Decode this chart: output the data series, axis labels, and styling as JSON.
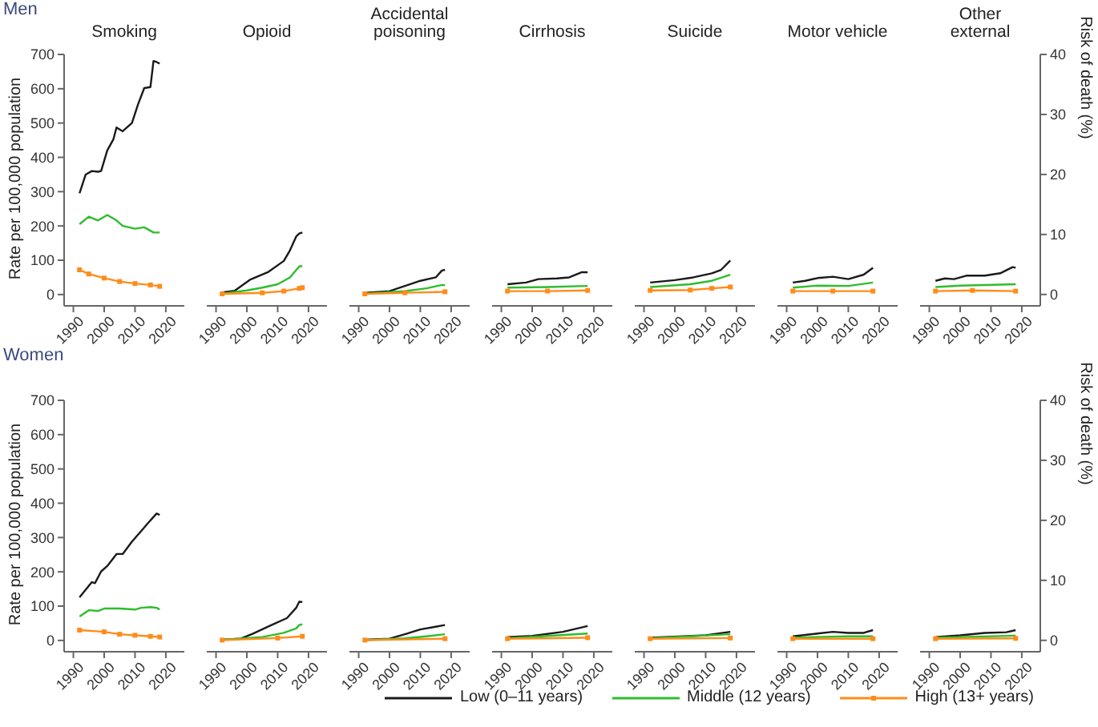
{
  "chart_data": [
    {
      "type": "line",
      "subtitle": "Men",
      "title": "Smoking",
      "ylabel": "Rate per 100,000 population",
      "legend": "bottom",
      "xlim": [
        1987,
        2026
      ],
      "xticks": [
        1990,
        2000,
        2010,
        2020
      ],
      "ylim": [
        -33,
        700
      ],
      "yticks": [
        0,
        100,
        200,
        300,
        400,
        500,
        600,
        700
      ],
      "series": [
        {
          "name": "Low (0–11 years)",
          "color": "#1a1a1a",
          "x": [
            1992,
            1994,
            1996,
            1998,
            1999,
            2001,
            2003,
            2004,
            2006,
            2009,
            2011,
            2013,
            2015,
            2016,
            2017,
            2018
          ],
          "values": [
            295,
            350,
            360,
            358,
            360,
            420,
            453,
            487,
            476,
            500,
            555,
            602,
            605,
            681,
            678,
            673
          ]
        },
        {
          "name": "Middle (12 years)",
          "color": "#2dbd2d",
          "x": [
            1992,
            1995,
            1998,
            2001,
            2004,
            2006,
            2010,
            2013,
            2016,
            2018
          ],
          "values": [
            205,
            227,
            216,
            232,
            216,
            200,
            192,
            196,
            181,
            181
          ]
        },
        {
          "name": "High (13+ years)",
          "color": "#ff8c1a",
          "marker": "square",
          "x": [
            1992,
            1995,
            2000,
            2005,
            2010,
            2015,
            2018
          ],
          "values": [
            72,
            60,
            48,
            38,
            32,
            28,
            24
          ]
        }
      ]
    },
    {
      "type": "line",
      "title": "Opioid",
      "tick_labels": "x",
      "xlim": [
        1987,
        2026
      ],
      "xticks": [
        1990,
        2000,
        2010,
        2020
      ],
      "ylim": [
        -33,
        700
      ],
      "yticks": [
        0,
        100,
        200,
        300,
        400,
        500,
        600,
        700
      ],
      "series": [
        {
          "color": "#1a1a1a",
          "x": [
            1992,
            1996,
            2001,
            2007,
            2012,
            2014,
            2016,
            2017,
            2018
          ],
          "values": [
            6,
            11,
            43,
            66,
            98,
            129,
            169,
            178,
            181
          ]
        },
        {
          "color": "#2dbd2d",
          "x": [
            1992,
            2000,
            2005,
            2010,
            2014,
            2017,
            2018
          ],
          "values": [
            3,
            12,
            20,
            30,
            50,
            82,
            83
          ]
        },
        {
          "color": "#ff8c1a",
          "marker": "square",
          "x": [
            1992,
            2005,
            2012,
            2017,
            2018
          ],
          "values": [
            2,
            5,
            10,
            18,
            20
          ]
        }
      ]
    },
    {
      "type": "line",
      "title": "Accidental poisoning",
      "tick_labels": "x",
      "xlim": [
        1987,
        2026
      ],
      "xticks": [
        1990,
        2000,
        2010,
        2020
      ],
      "ylim": [
        -33,
        700
      ],
      "yticks": [
        0,
        100,
        200,
        300,
        400,
        500,
        600,
        700
      ],
      "series": [
        {
          "color": "#1a1a1a",
          "x": [
            1992,
            2000,
            2005,
            2010,
            2015,
            2017,
            2018
          ],
          "values": [
            5,
            10,
            25,
            40,
            50,
            70,
            72
          ]
        },
        {
          "color": "#2dbd2d",
          "x": [
            1992,
            2005,
            2012,
            2017,
            2018
          ],
          "values": [
            3,
            10,
            18,
            28,
            27
          ]
        },
        {
          "color": "#ff8c1a",
          "marker": "square",
          "x": [
            1992,
            2005,
            2018
          ],
          "values": [
            2,
            5,
            8
          ]
        }
      ]
    },
    {
      "type": "line",
      "title": "Cirrhosis",
      "tick_labels": "x",
      "xlim": [
        1987,
        2026
      ],
      "xticks": [
        1990,
        2000,
        2010,
        2020
      ],
      "ylim": [
        -33,
        700
      ],
      "yticks": [
        0,
        100,
        200,
        300,
        400,
        500,
        600,
        700
      ],
      "series": [
        {
          "color": "#1a1a1a",
          "x": [
            1992,
            1998,
            2002,
            2008,
            2012,
            2016,
            2018
          ],
          "values": [
            30,
            35,
            45,
            47,
            50,
            65,
            65
          ]
        },
        {
          "color": "#2dbd2d",
          "x": [
            1992,
            2005,
            2018
          ],
          "values": [
            20,
            22,
            25
          ]
        },
        {
          "color": "#ff8c1a",
          "marker": "square",
          "x": [
            1992,
            2005,
            2018
          ],
          "values": [
            10,
            10,
            12
          ]
        }
      ]
    },
    {
      "type": "line",
      "title": "Suicide",
      "tick_labels": "x",
      "xlim": [
        1987,
        2026
      ],
      "xticks": [
        1990,
        2000,
        2010,
        2020
      ],
      "ylim": [
        -33,
        700
      ],
      "yticks": [
        0,
        100,
        200,
        300,
        400,
        500,
        600,
        700
      ],
      "series": [
        {
          "color": "#1a1a1a",
          "x": [
            1992,
            2000,
            2006,
            2012,
            2015,
            2018
          ],
          "values": [
            35,
            42,
            50,
            62,
            72,
            99
          ]
        },
        {
          "color": "#2dbd2d",
          "x": [
            1992,
            2005,
            2012,
            2018
          ],
          "values": [
            22,
            30,
            40,
            58
          ]
        },
        {
          "color": "#ff8c1a",
          "marker": "square",
          "x": [
            1992,
            2005,
            2012,
            2018
          ],
          "values": [
            12,
            13,
            18,
            22
          ]
        }
      ]
    },
    {
      "type": "line",
      "title": "Motor vehicle",
      "tick_labels": "x",
      "xlim": [
        1987,
        2026
      ],
      "xticks": [
        1990,
        2000,
        2010,
        2020
      ],
      "ylim": [
        -33,
        700
      ],
      "yticks": [
        0,
        100,
        200,
        300,
        400,
        500,
        600,
        700
      ],
      "series": [
        {
          "color": "#1a1a1a",
          "x": [
            1992,
            1996,
            2000,
            2005,
            2010,
            2015,
            2018
          ],
          "values": [
            35,
            40,
            48,
            52,
            45,
            58,
            78
          ]
        },
        {
          "color": "#2dbd2d",
          "x": [
            1992,
            2000,
            2010,
            2018
          ],
          "values": [
            20,
            26,
            25,
            35
          ]
        },
        {
          "color": "#ff8c1a",
          "marker": "square",
          "x": [
            1992,
            2005,
            2018
          ],
          "values": [
            10,
            10,
            10
          ]
        }
      ]
    },
    {
      "type": "line",
      "title": "Other external",
      "y2label": "Risk of death (%)",
      "xlim": [
        1987,
        2026
      ],
      "xticks": [
        1990,
        2000,
        2010,
        2020
      ],
      "ylim": [
        -33,
        700
      ],
      "y2lim": [
        -1.9,
        40
      ],
      "y2ticks": [
        0,
        10,
        20,
        30,
        40
      ],
      "series": [
        {
          "color": "#1a1a1a",
          "x": [
            1992,
            1995,
            1998,
            2002,
            2008,
            2013,
            2017,
            2018
          ],
          "values": [
            40,
            47,
            45,
            55,
            55,
            62,
            80,
            78
          ]
        },
        {
          "color": "#2dbd2d",
          "x": [
            1992,
            2000,
            2018
          ],
          "values": [
            22,
            26,
            30
          ]
        },
        {
          "color": "#ff8c1a",
          "marker": "square",
          "x": [
            1992,
            2004,
            2018
          ],
          "values": [
            10,
            12,
            10
          ]
        }
      ]
    },
    {
      "type": "line",
      "subtitle": "Women",
      "ylabel": "Rate per 100,000 population",
      "xlim": [
        1987,
        2026
      ],
      "xticks": [
        1990,
        2000,
        2010,
        2020
      ],
      "ylim": [
        -33,
        700
      ],
      "yticks": [
        0,
        100,
        200,
        300,
        400,
        500,
        600,
        700
      ],
      "series": [
        {
          "color": "#1a1a1a",
          "x": [
            1992,
            1996,
            1997,
            1999,
            2001,
            2004,
            2006,
            2009,
            2012,
            2014,
            2017,
            2018
          ],
          "values": [
            126,
            170,
            167,
            201,
            217,
            252,
            252,
            288,
            319,
            340,
            370,
            366
          ]
        },
        {
          "color": "#2dbd2d",
          "x": [
            1992,
            1995,
            1998,
            2000,
            2005,
            2010,
            2012,
            2015,
            2017,
            2018
          ],
          "values": [
            70,
            88,
            86,
            93,
            93,
            90,
            95,
            97,
            95,
            90
          ]
        },
        {
          "color": "#ff8c1a",
          "marker": "square",
          "x": [
            1992,
            2000,
            2005,
            2010,
            2015,
            2018
          ],
          "values": [
            30,
            25,
            18,
            15,
            12,
            10
          ]
        }
      ]
    },
    {
      "type": "line",
      "tick_labels": "x",
      "xlim": [
        1987,
        2026
      ],
      "xticks": [
        1990,
        2000,
        2010,
        2020
      ],
      "ylim": [
        -33,
        700
      ],
      "yticks": [
        0,
        100,
        200,
        300,
        400,
        500,
        600,
        700
      ],
      "series": [
        {
          "color": "#1a1a1a",
          "x": [
            1992,
            1998,
            2002,
            2008,
            2013,
            2016,
            2017,
            2018
          ],
          "values": [
            2,
            5,
            20,
            45,
            65,
            95,
            113,
            112
          ]
        },
        {
          "color": "#2dbd2d",
          "x": [
            1992,
            2005,
            2012,
            2016,
            2017,
            2018
          ],
          "values": [
            2,
            10,
            22,
            35,
            45,
            47
          ]
        },
        {
          "color": "#ff8c1a",
          "marker": "square",
          "x": [
            1992,
            2010,
            2018
          ],
          "values": [
            1,
            7,
            12
          ]
        }
      ]
    },
    {
      "type": "line",
      "tick_labels": "x",
      "xlim": [
        1987,
        2026
      ],
      "xticks": [
        1990,
        2000,
        2010,
        2020
      ],
      "ylim": [
        -33,
        700
      ],
      "yticks": [
        0,
        100,
        200,
        300,
        400,
        500,
        600,
        700
      ],
      "series": [
        {
          "color": "#1a1a1a",
          "x": [
            1992,
            2000,
            2005,
            2010,
            2015,
            2018
          ],
          "values": [
            2,
            5,
            18,
            32,
            40,
            45
          ]
        },
        {
          "color": "#2dbd2d",
          "x": [
            1992,
            2005,
            2012,
            2018
          ],
          "values": [
            1,
            6,
            12,
            18
          ]
        },
        {
          "color": "#ff8c1a",
          "marker": "square",
          "x": [
            1992,
            2018
          ],
          "values": [
            1,
            5
          ]
        }
      ]
    },
    {
      "type": "line",
      "tick_labels": "x",
      "xlim": [
        1987,
        2026
      ],
      "xticks": [
        1990,
        2000,
        2010,
        2020
      ],
      "ylim": [
        -33,
        700
      ],
      "yticks": [
        0,
        100,
        200,
        300,
        400,
        500,
        600,
        700
      ],
      "series": [
        {
          "color": "#1a1a1a",
          "x": [
            1992,
            2000,
            2010,
            2018
          ],
          "values": [
            10,
            13,
            25,
            42
          ]
        },
        {
          "color": "#2dbd2d",
          "x": [
            1992,
            2018
          ],
          "values": [
            6,
            20
          ]
        },
        {
          "color": "#ff8c1a",
          "marker": "square",
          "x": [
            1992,
            2018
          ],
          "values": [
            5,
            8
          ]
        }
      ]
    },
    {
      "type": "line",
      "tick_labels": "x",
      "xlim": [
        1987,
        2026
      ],
      "xticks": [
        1990,
        2000,
        2010,
        2020
      ],
      "ylim": [
        -33,
        700
      ],
      "yticks": [
        0,
        100,
        200,
        300,
        400,
        500,
        600,
        700
      ],
      "series": [
        {
          "color": "#1a1a1a",
          "x": [
            1992,
            2010,
            2018
          ],
          "values": [
            8,
            15,
            25
          ]
        },
        {
          "color": "#2dbd2d",
          "x": [
            1992,
            2018
          ],
          "values": [
            6,
            18
          ]
        },
        {
          "color": "#ff8c1a",
          "marker": "square",
          "x": [
            1992,
            2018
          ],
          "values": [
            5,
            7
          ]
        }
      ]
    },
    {
      "type": "line",
      "tick_labels": "x",
      "xlim": [
        1987,
        2026
      ],
      "xticks": [
        1990,
        2000,
        2010,
        2020
      ],
      "ylim": [
        -33,
        700
      ],
      "yticks": [
        0,
        100,
        200,
        300,
        400,
        500,
        600,
        700
      ],
      "series": [
        {
          "color": "#1a1a1a",
          "x": [
            1992,
            2000,
            2005,
            2010,
            2015,
            2018
          ],
          "values": [
            12,
            20,
            25,
            22,
            22,
            30
          ]
        },
        {
          "color": "#2dbd2d",
          "x": [
            1992,
            2010,
            2018
          ],
          "values": [
            8,
            12,
            12
          ]
        },
        {
          "color": "#ff8c1a",
          "marker": "square",
          "x": [
            1992,
            2018
          ],
          "values": [
            5,
            5
          ]
        }
      ]
    },
    {
      "type": "line",
      "y2label": "Risk of death (%)",
      "xlim": [
        1987,
        2026
      ],
      "xticks": [
        1990,
        2000,
        2010,
        2020
      ],
      "ylim": [
        -33,
        700
      ],
      "y2lim": [
        -1.9,
        40
      ],
      "y2ticks": [
        0,
        10,
        20,
        30,
        40
      ],
      "series": [
        {
          "color": "#1a1a1a",
          "x": [
            1992,
            2000,
            2008,
            2015,
            2018
          ],
          "values": [
            10,
            15,
            22,
            24,
            30
          ]
        },
        {
          "color": "#2dbd2d",
          "x": [
            1992,
            2018
          ],
          "values": [
            8,
            14
          ]
        },
        {
          "color": "#ff8c1a",
          "marker": "square",
          "x": [
            1992,
            2018
          ],
          "values": [
            5,
            6
          ]
        }
      ]
    }
  ]
}
